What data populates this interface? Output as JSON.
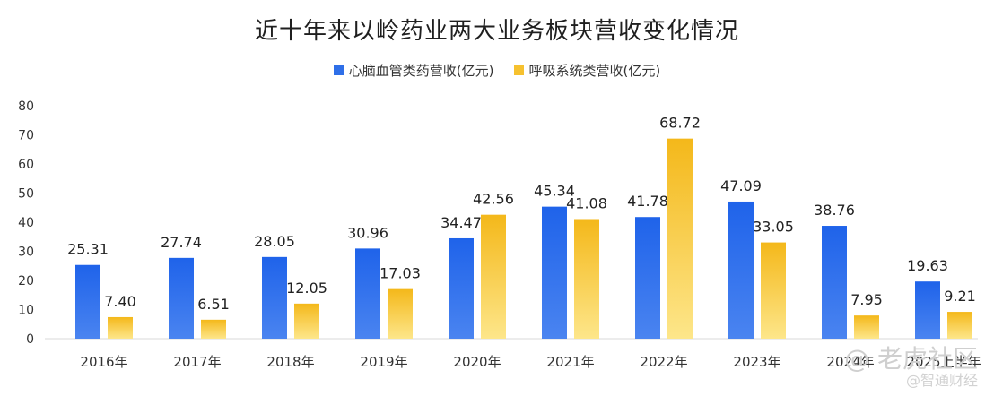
{
  "chart_data": {
    "type": "bar",
    "title": "近十年来以岭药业两大业务板块营收变化情况",
    "categories": [
      "2016年",
      "2017年",
      "2018年",
      "2019年",
      "2020年",
      "2021年",
      "2022年",
      "2023年",
      "2024年",
      "2025上半年"
    ],
    "series": [
      {
        "name": "心脑血管类药营收(亿元)",
        "color": "#2f6fe8",
        "values": [
          25.31,
          27.74,
          28.05,
          30.96,
          34.47,
          45.34,
          41.78,
          47.09,
          38.76,
          19.63
        ]
      },
      {
        "name": "呼吸系统类营收(亿元)",
        "color": "#f6c12f",
        "values": [
          7.4,
          6.51,
          12.05,
          17.03,
          42.56,
          41.08,
          68.72,
          33.05,
          7.95,
          9.21
        ]
      }
    ],
    "value_labels": [
      [
        "25.31",
        "27.74",
        "28.05",
        "30.96",
        "34.47",
        "45.34",
        "41.78",
        "47.09",
        "38.76",
        "19.63"
      ],
      [
        "7.40",
        "6.51",
        "12.05",
        "17.03",
        "42.56",
        "41.08",
        "68.72",
        "33.05",
        "7.95",
        "9.21"
      ]
    ],
    "ylim": [
      0,
      80
    ],
    "yticks": [
      0,
      10,
      20,
      30,
      40,
      50,
      60,
      70,
      80
    ],
    "grid": false,
    "legend_position": "top-center"
  },
  "watermark": {
    "main": "@ 老虎社区",
    "sub": "@智通财经"
  }
}
